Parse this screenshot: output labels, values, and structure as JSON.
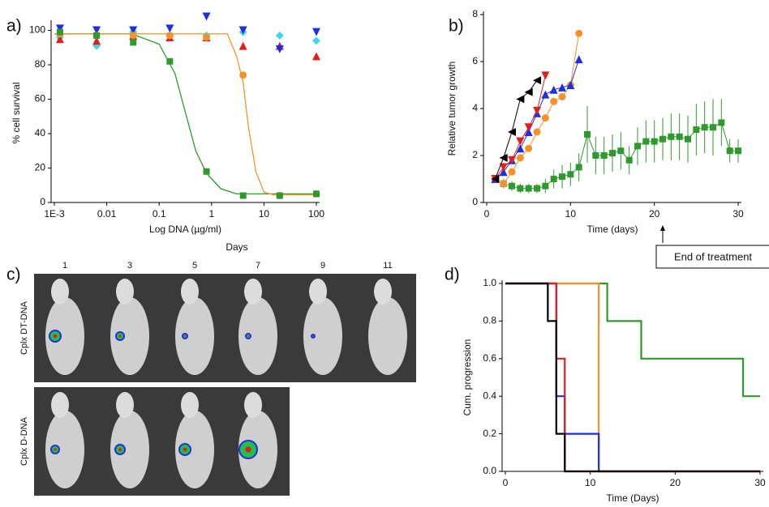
{
  "chart_data": [
    {
      "type": "scatter",
      "panel_label": "a)",
      "xlabel": "Log DNA (µg/ml)",
      "ylabel": "% cell survival",
      "xscale": "log",
      "xlim": [
        0.001,
        100
      ],
      "xticks": [
        {
          "value": 0.001,
          "label": "1E-3"
        },
        0.01,
        0.1,
        1,
        10,
        100
      ],
      "ylim": [
        0,
        104
      ],
      "yticks": [
        0,
        20,
        40,
        60,
        80,
        100
      ],
      "x": [
        0.00128,
        0.0064,
        0.032,
        0.16,
        0.8,
        4,
        20,
        100
      ],
      "series": [
        {
          "color": "#3fd9e6",
          "marker": "diamond",
          "values": [
            96,
            91,
            99,
            97,
            97,
            99,
            97,
            94
          ]
        },
        {
          "color": "#e0201c",
          "marker": "triangle-up",
          "values": [
            95,
            94,
            97,
            96,
            96,
            91,
            91,
            85
          ]
        },
        {
          "color": "#1f2ee0",
          "marker": "triangle-down",
          "values": [
            101,
            100,
            100,
            101,
            108,
            100,
            89,
            99
          ]
        },
        {
          "color": "#f5922b",
          "marker": "circle",
          "values": [
            98,
            97,
            97,
            97,
            96,
            74,
            4,
            5
          ]
        },
        {
          "color": "#2e9a2e",
          "marker": "square",
          "values": [
            99,
            97,
            93,
            82,
            18,
            4,
            4,
            5
          ]
        }
      ],
      "fits": [
        {
          "color": "#2e9a2e",
          "x": [
            0.001,
            0.03,
            0.1,
            0.2,
            0.3,
            0.5,
            0.8,
            1.5,
            3,
            100
          ],
          "values": [
            98,
            98,
            92,
            75,
            55,
            30,
            17,
            8,
            5,
            5
          ]
        },
        {
          "color": "#f5922b",
          "x": [
            0.001,
            2,
            3,
            4,
            5,
            7,
            10,
            15,
            100
          ],
          "values": [
            98,
            98,
            85,
            70,
            45,
            18,
            6,
            4.5,
            4.5
          ]
        }
      ]
    },
    {
      "type": "line",
      "panel_label": "b)",
      "xlabel": "Time (days)",
      "ylabel": "Relative tumor growth",
      "xlim": [
        0,
        30
      ],
      "xticks": [
        0,
        10,
        20,
        30
      ],
      "ylim": [
        0,
        8
      ],
      "yticks": [
        0,
        2,
        4,
        6,
        8
      ],
      "annotation": {
        "text": "End of treatment",
        "x": 21
      },
      "series": [
        {
          "color": "#2e9a2e",
          "marker": "square",
          "x": [
            2,
            3,
            4,
            5,
            6,
            7,
            8,
            9,
            10,
            11,
            12,
            13,
            14,
            15,
            16,
            17,
            18,
            19,
            20,
            21,
            22,
            23,
            24,
            25,
            26,
            27,
            28,
            29,
            30
          ],
          "values": [
            0.8,
            0.7,
            0.6,
            0.6,
            0.6,
            0.7,
            1.0,
            1.1,
            1.2,
            1.5,
            2.9,
            2.0,
            2.0,
            2.1,
            2.2,
            1.8,
            2.4,
            2.6,
            2.6,
            2.7,
            2.8,
            2.8,
            2.7,
            3.1,
            3.2,
            3.2,
            3.4,
            2.2,
            2.2
          ],
          "errors": [
            0.2,
            0.2,
            0.2,
            0.2,
            0.2,
            0.3,
            0.4,
            0.5,
            0.5,
            0.6,
            1.2,
            0.8,
            0.8,
            0.8,
            0.8,
            0.6,
            0.8,
            0.9,
            0.9,
            0.9,
            1.0,
            1.0,
            1.0,
            1.1,
            1.1,
            1.2,
            1.0,
            0.5,
            0.5
          ]
        },
        {
          "color": "#f5922b",
          "marker": "circle",
          "x": [
            1,
            2,
            3,
            4,
            5,
            6,
            7,
            8,
            9,
            10,
            11
          ],
          "values": [
            1.0,
            0.8,
            1.3,
            1.9,
            2.3,
            3.0,
            3.6,
            4.3,
            4.5,
            5.0,
            7.2
          ]
        },
        {
          "color": "#1f2ee0",
          "marker": "triangle-up",
          "x": [
            1,
            2,
            3,
            4,
            5,
            6,
            7,
            8,
            9,
            10,
            11
          ],
          "values": [
            1.0,
            1.3,
            1.8,
            2.3,
            3.0,
            3.8,
            4.6,
            4.8,
            4.9,
            5.0,
            6.1
          ]
        },
        {
          "color": "#e0201c",
          "marker": "triangle-down",
          "x": [
            1,
            2,
            3,
            4,
            5,
            6,
            7
          ],
          "values": [
            1.0,
            1.5,
            1.8,
            2.6,
            3.2,
            3.9,
            5.4
          ]
        },
        {
          "color": "#000000",
          "marker": "triangle-left",
          "x": [
            1,
            2,
            3,
            4,
            5,
            6
          ],
          "values": [
            1.0,
            1.9,
            3.0,
            4.4,
            4.7,
            5.2
          ]
        }
      ]
    },
    {
      "type": "step",
      "panel_label": "d)",
      "xlabel": "Time (Days)",
      "ylabel": "Cum. progression",
      "xlim": [
        0,
        30
      ],
      "xticks": [
        0,
        10,
        20,
        30
      ],
      "ylim": [
        0,
        1
      ],
      "yticks": [
        {
          "value": 0,
          "label": "0.0"
        },
        0.2,
        0.4,
        0.6,
        0.8,
        {
          "value": 1,
          "label": "1.0"
        }
      ],
      "series": [
        {
          "color": "#2e9a2e",
          "x": [
            0,
            12,
            16,
            28,
            30
          ],
          "values": [
            1,
            0.8,
            0.6,
            0.4,
            0.4
          ]
        },
        {
          "color": "#f5922b",
          "x": [
            0,
            11,
            30
          ],
          "values": [
            1,
            0,
            0
          ]
        },
        {
          "color": "#1f2ee0",
          "x": [
            0,
            6,
            7,
            11,
            30
          ],
          "values": [
            1,
            0.4,
            0.2,
            0,
            0
          ]
        },
        {
          "color": "#e0201c",
          "x": [
            0,
            6,
            7,
            30
          ],
          "values": [
            1,
            0.6,
            0,
            0
          ]
        },
        {
          "color": "#000000",
          "x": [
            0,
            5,
            6,
            7,
            30
          ],
          "values": [
            1,
            0.8,
            0.2,
            0,
            0
          ]
        }
      ]
    }
  ],
  "image_panel": {
    "panel_label": "c)",
    "title": "Days",
    "days": [
      1,
      3,
      5,
      7,
      9,
      11
    ],
    "rows": [
      "Cplx DT-DNA",
      "Cplx D-DNA"
    ]
  }
}
